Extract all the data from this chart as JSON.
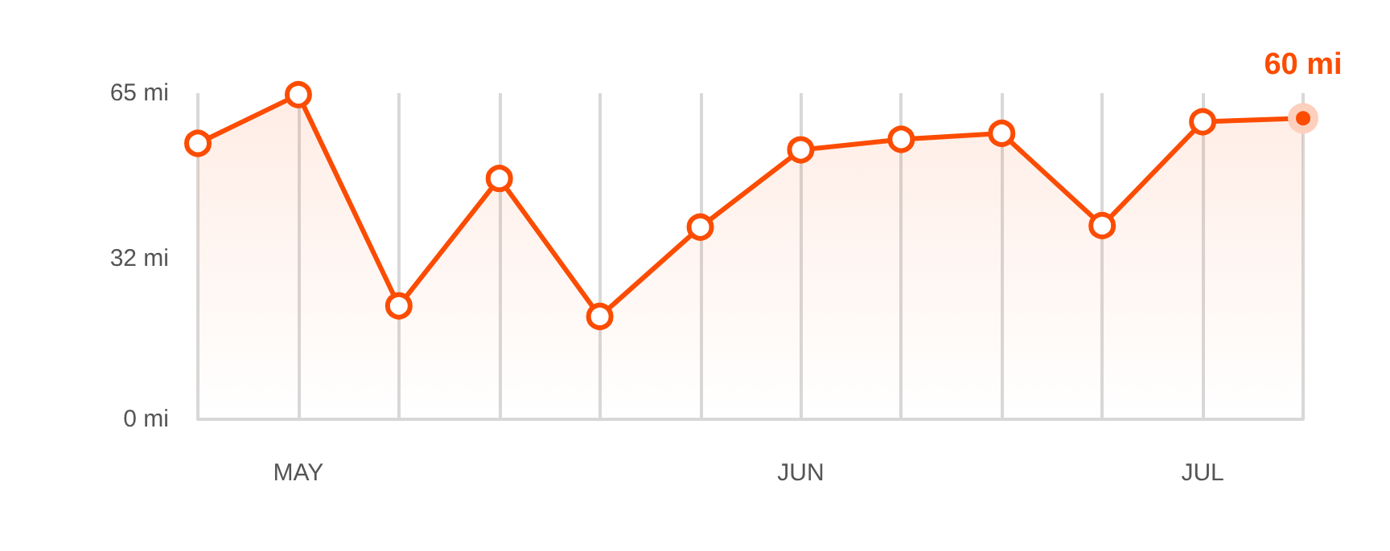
{
  "chart_data": {
    "type": "area",
    "categories": [
      null,
      "MAY",
      null,
      null,
      null,
      null,
      "JUN",
      null,
      null,
      null,
      "JUL",
      null
    ],
    "series": [
      {
        "color": "#fc4c02",
        "values": [
          55,
          64.7,
          22.6,
          48,
          20.5,
          38.3,
          53.7,
          55.8,
          57,
          38.6,
          59.3,
          60
        ],
        "value_labels": [
          null,
          null,
          null,
          null,
          null,
          null,
          null,
          null,
          null,
          null,
          null,
          "60 mi"
        ]
      }
    ],
    "ylim": [
      0,
      65
    ],
    "yticks": [
      {
        "value": 0,
        "label": "0 mi"
      },
      {
        "value": 32,
        "label": "32 mi"
      },
      {
        "value": 65,
        "label": "65 mi"
      }
    ],
    "grid": "x",
    "marker": "circle",
    "line_style": "solid"
  }
}
